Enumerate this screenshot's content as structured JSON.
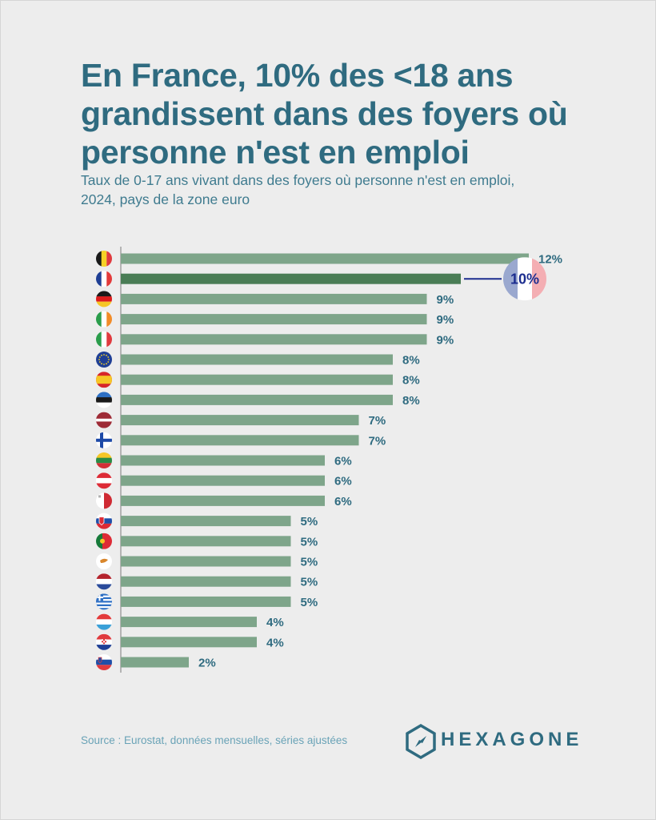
{
  "title": "En France, 10% des <18 ans grandissent dans des foyers où personne n'est en emploi",
  "subtitle": "Taux de 0-17 ans vivant dans des foyers où personne n'est en emploi, 2024, pays de la zone euro",
  "source": "Source : Eurostat, données mensuelles, séries ajustées",
  "brand": "HEXAGONE",
  "colors": {
    "bar": "#7ea58a",
    "highlight_bar": "#4a7d56",
    "label": "#2f6b80",
    "callout_text": "#1c2d8f",
    "background": "#ededed"
  },
  "chart_data": {
    "type": "bar",
    "orientation": "horizontal",
    "categories": [
      "Belgique",
      "France",
      "Allemagne",
      "Irlande",
      "Italie",
      "Zone euro",
      "Espagne",
      "Estonie",
      "Lettonie",
      "Finlande",
      "Lituanie",
      "Autriche",
      "Malte",
      "Slovaquie",
      "Portugal",
      "Chypre",
      "Pays-Bas",
      "Grèce",
      "Luxembourg",
      "Croatie",
      "Slovénie"
    ],
    "flags": [
      "be",
      "fr",
      "de",
      "ie",
      "it",
      "eu",
      "es",
      "ee",
      "lv",
      "fi",
      "lt",
      "at",
      "mt",
      "sk",
      "pt",
      "cy",
      "nl",
      "gr",
      "lu",
      "hr",
      "si"
    ],
    "values": [
      12,
      10,
      9,
      9,
      9,
      8,
      8,
      8,
      7,
      7,
      6,
      6,
      6,
      5,
      5,
      5,
      5,
      5,
      4,
      4,
      2
    ],
    "labels": [
      "12%",
      "10%",
      "9%",
      "9%",
      "9%",
      "8%",
      "8%",
      "8%",
      "7%",
      "7%",
      "6%",
      "6%",
      "6%",
      "5%",
      "5%",
      "5%",
      "5%",
      "5%",
      "4%",
      "4%",
      "2%"
    ],
    "highlight": "France",
    "xlim": [
      0,
      12
    ],
    "grid": false,
    "unit": "%"
  }
}
